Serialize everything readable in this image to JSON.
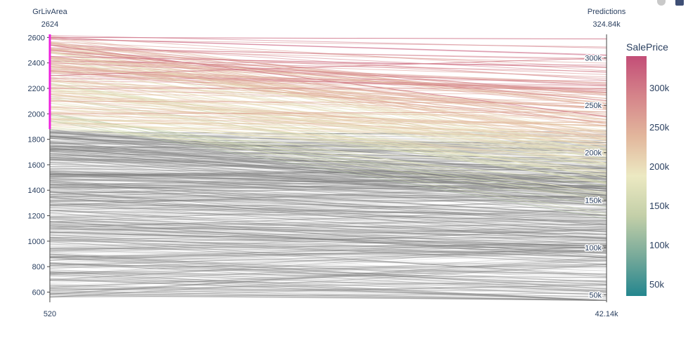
{
  "chart_data": {
    "type": "parallel_coordinates",
    "title": "",
    "dimensions": [
      {
        "label": "GrLivArea",
        "range_top_label": "2624",
        "range_bottom_label": "520",
        "range": [
          520,
          2624
        ],
        "ticks": [
          600,
          800,
          1000,
          1200,
          1400,
          1600,
          1800,
          2000,
          2200,
          2400,
          2600
        ],
        "constraint_range": [
          1880,
          2624
        ]
      },
      {
        "label": "Predictions",
        "range_top_label": "324.84k",
        "range_bottom_label": "42.14k",
        "range": [
          42140,
          324840
        ],
        "ticks": [
          50000,
          100000,
          150000,
          200000,
          250000,
          300000
        ],
        "tick_labels": [
          "50k",
          "100k",
          "150k",
          "200k",
          "250k",
          "300k"
        ]
      }
    ],
    "color_axis": {
      "title": "SalePrice",
      "range": [
        35000,
        340000
      ],
      "ticks": [
        50000,
        100000,
        150000,
        200000,
        250000,
        300000
      ],
      "tick_labels": [
        "50k",
        "100k",
        "150k",
        "200k",
        "250k",
        "300k"
      ],
      "colorscale": [
        "#24868e",
        "#78aa9a",
        "#c3cfa8",
        "#ece9c2",
        "#e2b69c",
        "#d5848a",
        "#c34e77"
      ]
    },
    "unselected_color": "#7f7f7f",
    "constraint_color": "#ee22dd",
    "samples": [
      {
        "grlivarea": 2600,
        "prediction": 320000,
        "saleprice": 315000
      },
      {
        "grlivarea": 2540,
        "prediction": 238000,
        "saleprice": 305000
      },
      {
        "grlivarea": 2500,
        "prediction": 255000,
        "saleprice": 290000
      },
      {
        "grlivarea": 2450,
        "prediction": 290000,
        "saleprice": 310000
      },
      {
        "grlivarea": 2400,
        "prediction": 272000,
        "saleprice": 285000
      },
      {
        "grlivarea": 2340,
        "prediction": 232000,
        "saleprice": 262000
      },
      {
        "grlivarea": 2300,
        "prediction": 300000,
        "saleprice": 300000
      },
      {
        "grlivarea": 2260,
        "prediction": 247000,
        "saleprice": 245000
      },
      {
        "grlivarea": 2200,
        "prediction": 268000,
        "saleprice": 280000
      },
      {
        "grlivarea": 2150,
        "prediction": 211000,
        "saleprice": 218000
      },
      {
        "grlivarea": 2100,
        "prediction": 252000,
        "saleprice": 255000
      },
      {
        "grlivarea": 2050,
        "prediction": 228000,
        "saleprice": 236000
      },
      {
        "grlivarea": 2000,
        "prediction": 243000,
        "saleprice": 260000
      },
      {
        "grlivarea": 1960,
        "prediction": 214000,
        "saleprice": 205000
      },
      {
        "grlivarea": 1920,
        "prediction": 232000,
        "saleprice": 228000
      },
      {
        "grlivarea": 1890,
        "prediction": 188000,
        "saleprice": 160000
      }
    ]
  },
  "modebar": {
    "buttons": [
      {
        "icon": "camera-icon"
      },
      {
        "icon": "plotly-logo-icon"
      }
    ]
  }
}
